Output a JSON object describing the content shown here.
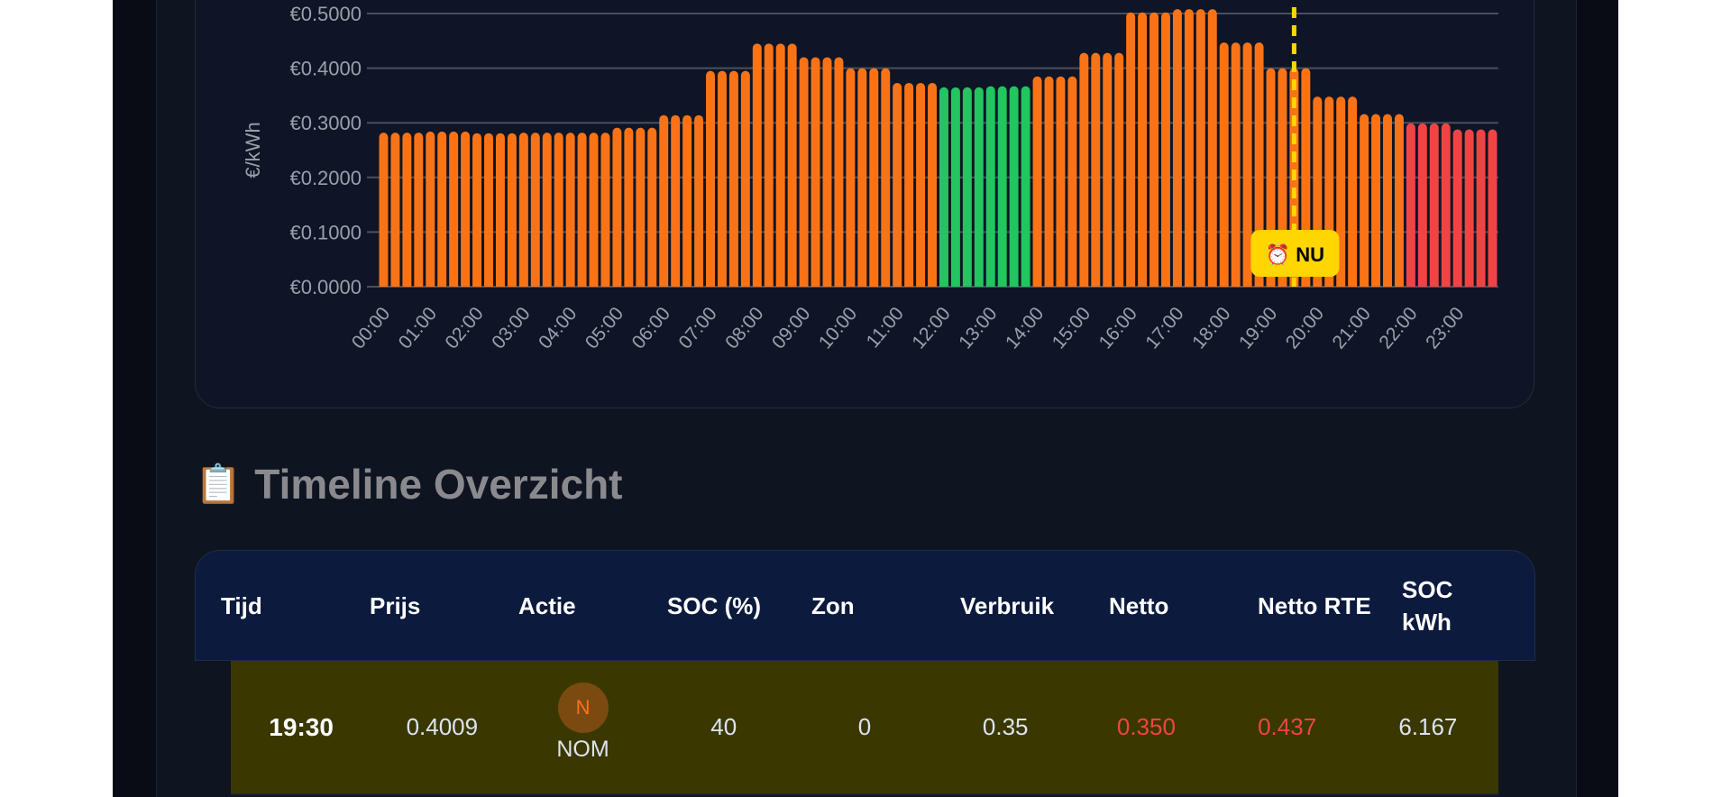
{
  "chart_data": {
    "type": "bar",
    "ylabel": "€/kWh",
    "ylim": [
      0,
      0.5
    ],
    "yticks": [
      "€0.0000",
      "€0.1000",
      "€0.2000",
      "€0.3000",
      "€0.4000",
      "€0.5000"
    ],
    "xticks": [
      "00:00",
      "01:00",
      "02:00",
      "03:00",
      "04:00",
      "05:00",
      "06:00",
      "07:00",
      "08:00",
      "09:00",
      "10:00",
      "11:00",
      "12:00",
      "13:00",
      "14:00",
      "15:00",
      "16:00",
      "17:00",
      "18:00",
      "19:00",
      "20:00",
      "21:00",
      "22:00",
      "23:00"
    ],
    "interval_minutes": 15,
    "hourly_values": [
      0.282,
      0.284,
      0.281,
      0.282,
      0.282,
      0.291,
      0.314,
      0.395,
      0.445,
      0.42,
      0.4,
      0.373,
      0.365,
      0.367,
      0.385,
      0.428,
      0.502,
      0.508,
      0.447,
      0.4,
      0.348,
      0.316,
      0.299,
      0.288
    ],
    "hourly_colors": [
      "orange",
      "orange",
      "orange",
      "orange",
      "orange",
      "orange",
      "orange",
      "orange",
      "orange",
      "orange",
      "orange",
      "orange",
      "green",
      "green",
      "orange",
      "orange",
      "orange",
      "orange",
      "orange",
      "orange",
      "orange",
      "orange",
      "red",
      "red"
    ],
    "colors": {
      "orange": "#f97316",
      "green": "#22c55e",
      "red": "#ef4444",
      "now": "#ffd600"
    },
    "now_marker": {
      "label": "⏰ NU",
      "time_index": 78
    }
  },
  "timeline": {
    "icon": "📋",
    "title": "Timeline Overzicht",
    "columns": [
      "Tijd",
      "Prijs",
      "Actie",
      "SOC (%)",
      "Zon",
      "Verbruik",
      "Netto",
      "Netto RTE",
      "SOC kWh"
    ],
    "rows": [
      {
        "tijd": "19:30",
        "prijs": "0.4009",
        "actie_badge": "N",
        "actie": "NOM",
        "soc": "40",
        "zon": "0",
        "verbruik": "0.35",
        "netto": "0.350",
        "netto_rte": "0.437",
        "soc_kwh": "6.167"
      }
    ]
  }
}
